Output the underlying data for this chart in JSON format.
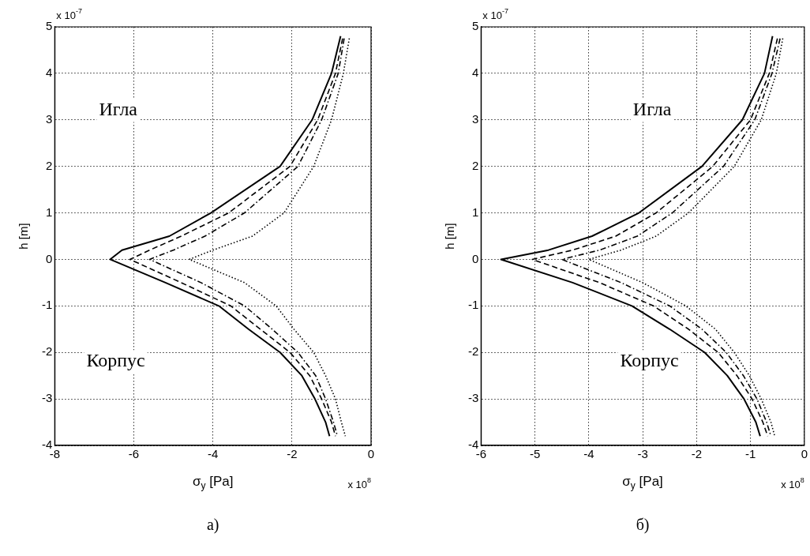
{
  "chart_data": [
    {
      "type": "line",
      "xlabel": "σ$_{y}$ [Pa]",
      "ylabel": "h [m]",
      "xlim": [
        -8,
        0
      ],
      "xticks": [
        -8,
        -6,
        -4,
        -2,
        0
      ],
      "ylim": [
        -4,
        5
      ],
      "yticks": [
        -4,
        -3,
        -2,
        -1,
        0,
        1,
        2,
        3,
        4,
        5
      ],
      "grid": true,
      "legend": false,
      "marker": "none",
      "annotations": [
        "Игла",
        "Корпус",
        "x 10$^{-7}$",
        "x 10$^{8}$",
        "а)"
      ],
      "series": [
        {
          "color": "#000000",
          "line_style": "solid",
          "x": [
            -0.77,
            -1.0,
            -1.49,
            -2.3,
            -4.05,
            -5.1,
            -6.3,
            -6.6,
            -5.2,
            -3.85,
            -3.1,
            -2.3,
            -1.75,
            -1.42,
            -1.15,
            -1.05
          ],
          "values": [
            4.8,
            4,
            3,
            2,
            1,
            0.5,
            0.2,
            0,
            -0.5,
            -1,
            -1.5,
            -2,
            -2.5,
            -3,
            -3.5,
            -3.8
          ]
        },
        {
          "color": "#000000",
          "line_style": "dashed",
          "x": [
            -0.72,
            -0.9,
            -1.35,
            -2.05,
            -3.6,
            -4.8,
            -5.6,
            -6.1,
            -4.8,
            -3.55,
            -2.8,
            -2.05,
            -1.55,
            -1.25,
            -1.0,
            -0.9
          ],
          "values": [
            4.75,
            4,
            3,
            2,
            1,
            0.5,
            0.2,
            0,
            -0.5,
            -1,
            -1.5,
            -2,
            -2.5,
            -3,
            -3.5,
            -3.8
          ]
        },
        {
          "color": "#000000",
          "line_style": "dashdot",
          "x": [
            -0.68,
            -0.83,
            -1.25,
            -1.85,
            -3.2,
            -4.2,
            -5.0,
            -5.6,
            -4.3,
            -3.2,
            -2.5,
            -1.85,
            -1.4,
            -1.15,
            -0.95,
            -0.85
          ],
          "values": [
            4.75,
            4,
            3,
            2,
            1,
            0.5,
            0.2,
            0,
            -0.5,
            -1,
            -1.5,
            -2,
            -2.5,
            -3,
            -3.5,
            -3.8
          ]
        },
        {
          "color": "#000000",
          "line_style": "dotted",
          "x": [
            -0.55,
            -0.7,
            -1.0,
            -1.45,
            -2.2,
            -3.0,
            -4.0,
            -4.6,
            -3.2,
            -2.4,
            -1.95,
            -1.45,
            -1.15,
            -0.9,
            -0.75,
            -0.65
          ],
          "values": [
            4.75,
            4,
            3,
            2,
            1,
            0.5,
            0.2,
            0,
            -0.5,
            -1,
            -1.5,
            -2,
            -2.5,
            -3,
            -3.5,
            -3.8
          ]
        }
      ]
    },
    {
      "type": "line",
      "xlabel": "σ$_{y}$ [Pa]",
      "ylabel": "h [m]",
      "xlim": [
        -6,
        0
      ],
      "xticks": [
        -6,
        -5,
        -4,
        -3,
        -2,
        -1,
        0
      ],
      "ylim": [
        -4,
        5
      ],
      "yticks": [
        -4,
        -3,
        -2,
        -1,
        0,
        1,
        2,
        3,
        4,
        5
      ],
      "grid": true,
      "legend": false,
      "marker": "none",
      "annotations": [
        "Игла",
        "Корпус",
        "x 10$^{-7}$",
        "x 10$^{8}$",
        "б)"
      ],
      "series": [
        {
          "color": "#000000",
          "line_style": "solid",
          "x": [
            -0.59,
            -0.74,
            -1.15,
            -1.9,
            -3.07,
            -3.94,
            -4.75,
            -5.63,
            -4.3,
            -3.2,
            -2.5,
            -1.85,
            -1.43,
            -1.12,
            -0.9,
            -0.82
          ],
          "values": [
            4.8,
            4,
            3,
            2,
            1,
            0.5,
            0.2,
            0,
            -0.5,
            -1,
            -1.5,
            -2,
            -2.5,
            -3,
            -3.5,
            -3.8
          ]
        },
        {
          "color": "#000000",
          "line_style": "dashed",
          "x": [
            -0.5,
            -0.65,
            -1.0,
            -1.7,
            -2.75,
            -3.5,
            -4.3,
            -5.05,
            -3.8,
            -2.8,
            -2.15,
            -1.6,
            -1.25,
            -0.97,
            -0.77,
            -0.68
          ],
          "values": [
            4.75,
            4,
            3,
            2,
            1,
            0.5,
            0.2,
            0,
            -0.5,
            -1,
            -1.5,
            -2,
            -2.5,
            -3,
            -3.5,
            -3.8
          ]
        },
        {
          "color": "#000000",
          "line_style": "dashdot",
          "x": [
            -0.45,
            -0.6,
            -0.92,
            -1.5,
            -2.45,
            -3.1,
            -3.8,
            -4.5,
            -3.4,
            -2.5,
            -1.9,
            -1.45,
            -1.13,
            -0.88,
            -0.7,
            -0.62
          ],
          "values": [
            4.75,
            4,
            3,
            2,
            1,
            0.5,
            0.2,
            0,
            -0.5,
            -1,
            -1.5,
            -2,
            -2.5,
            -3,
            -3.5,
            -3.8
          ]
        },
        {
          "color": "#000000",
          "line_style": "dotted",
          "x": [
            -0.4,
            -0.52,
            -0.8,
            -1.3,
            -2.15,
            -2.75,
            -3.4,
            -4.0,
            -3.0,
            -2.2,
            -1.65,
            -1.3,
            -1.02,
            -0.8,
            -0.62,
            -0.55
          ],
          "values": [
            4.75,
            4,
            3,
            2,
            1,
            0.5,
            0.2,
            0,
            -0.5,
            -1,
            -1.5,
            -2,
            -2.5,
            -3,
            -3.5,
            -3.8
          ]
        }
      ]
    }
  ]
}
